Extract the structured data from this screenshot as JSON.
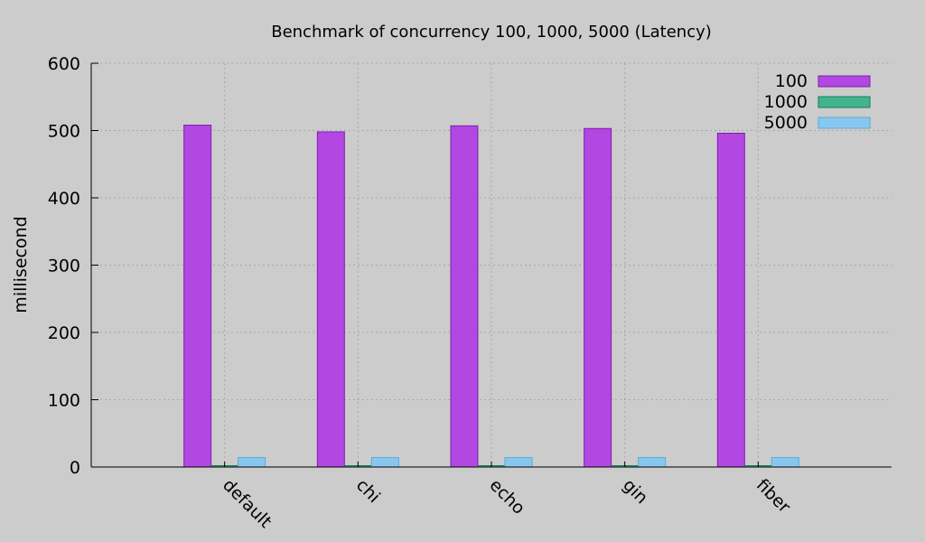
{
  "chart_data": {
    "type": "bar",
    "title": "Benchmark of concurrency 100, 1000, 5000 (Latency)",
    "xlabel": "",
    "ylabel": "millisecond",
    "ylim": [
      0,
      600
    ],
    "yticks": [
      0,
      100,
      200,
      300,
      400,
      500,
      600
    ],
    "grid": true,
    "legend_position": "top-right",
    "categories": [
      "default",
      "chi",
      "echo",
      "gin",
      "fiber"
    ],
    "series": [
      {
        "name": "100",
        "color": "#b347e2",
        "stroke": "#7d1fb0",
        "values": [
          508,
          498,
          507,
          503,
          496
        ]
      },
      {
        "name": "1000",
        "color": "#3fb48f",
        "stroke": "#1f7a5c",
        "values": [
          2,
          2,
          2,
          2,
          2
        ]
      },
      {
        "name": "5000",
        "color": "#88c8f0",
        "stroke": "#5aaad8",
        "values": [
          14,
          14,
          14,
          14,
          14
        ]
      }
    ]
  }
}
